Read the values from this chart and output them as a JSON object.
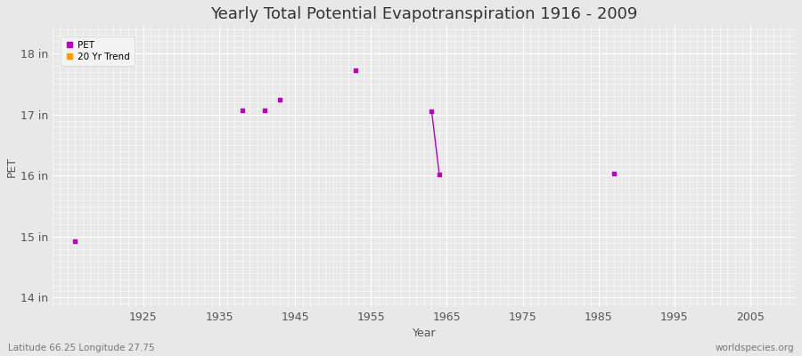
{
  "title": "Yearly Total Potential Evapotranspiration 1916 - 2009",
  "xlabel": "Year",
  "ylabel": "PET",
  "xlim": [
    1913,
    2011
  ],
  "ylim": [
    13.85,
    18.45
  ],
  "xticks": [
    1925,
    1935,
    1945,
    1955,
    1965,
    1975,
    1985,
    1995,
    2005
  ],
  "yticks": [
    14,
    15,
    16,
    17,
    18
  ],
  "ytick_labels": [
    "14 in",
    "15 in",
    "16 in",
    "17 in",
    "18 in"
  ],
  "fig_bg_color": "#e8e8e8",
  "plot_bg_color": "#e8e8e8",
  "grid_major_color": "#ffffff",
  "grid_minor_color": "#ffffff",
  "pet_color": "#bb00bb",
  "trend_color": "#ff9900",
  "pet_points": [
    [
      1916,
      14.93
    ],
    [
      1938,
      17.07
    ],
    [
      1941,
      17.07
    ],
    [
      1943,
      17.25
    ],
    [
      1953,
      17.73
    ],
    [
      1963,
      17.05
    ],
    [
      1964,
      16.02
    ],
    [
      1987,
      16.03
    ]
  ],
  "trend_line": [
    [
      1963,
      17.05
    ],
    [
      1964,
      16.02
    ]
  ],
  "footer_left": "Latitude 66.25 Longitude 27.75",
  "footer_right": "worldspecies.org",
  "legend_labels": [
    "PET",
    "20 Yr Trend"
  ],
  "legend_colors": [
    "#bb00bb",
    "#ff9900"
  ],
  "title_fontsize": 13,
  "axis_label_fontsize": 9,
  "tick_fontsize": 9,
  "footer_fontsize": 7.5
}
